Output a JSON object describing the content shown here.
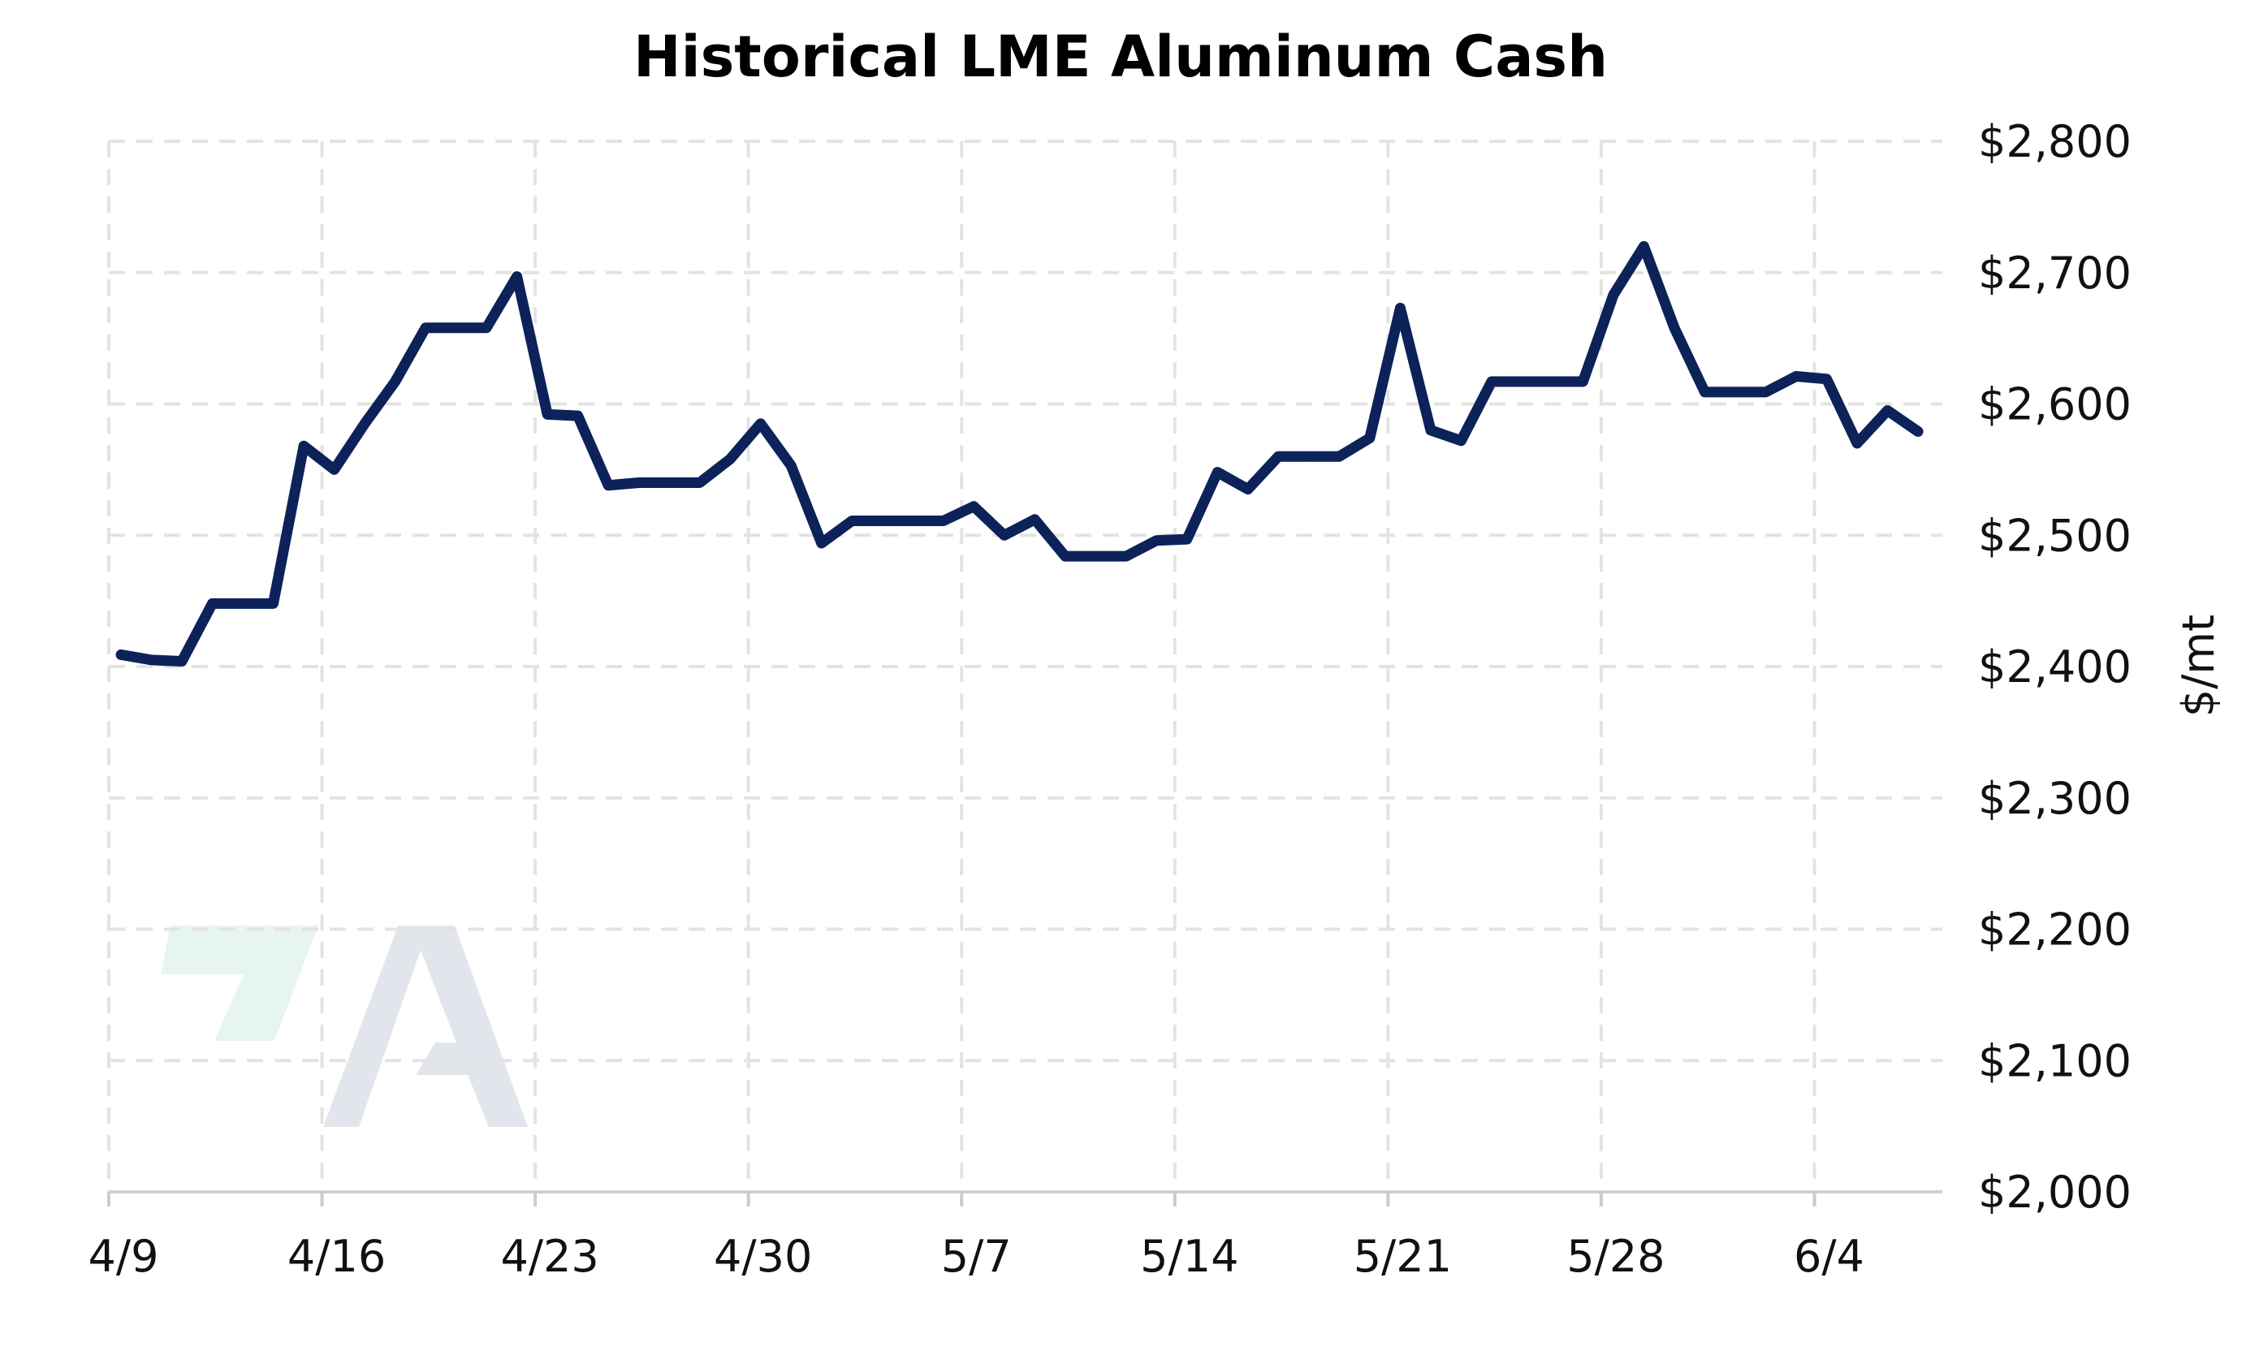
{
  "chart_data": {
    "type": "line",
    "title": "Historical LME Aluminum Cash",
    "xlabel": "",
    "ylabel": "$/mt",
    "x_axis_origin": "4/9",
    "x_tick_labels": [
      "4/9",
      "4/16",
      "4/23",
      "4/30",
      "5/7",
      "5/14",
      "5/21",
      "5/28",
      "6/4"
    ],
    "y_tick_labels": [
      "$2,000",
      "$2,100",
      "$2,200",
      "$2,300",
      "$2,400",
      "$2,500",
      "$2,600",
      "$2,700",
      "$2,800"
    ],
    "ylim": [
      2000,
      2800
    ],
    "x_range_days": [
      0,
      60.2
    ],
    "y_axis_position": "right",
    "grid": true,
    "grid_style": "dashed",
    "line_color": "#0c2259",
    "series": [
      {
        "x": [
          0.4,
          1.4,
          2.4,
          3.4,
          4.4,
          5.4,
          6.4,
          7.4,
          8.4,
          9.4,
          10.4,
          11.4,
          12.4,
          13.4,
          14.4,
          15.4,
          16.4,
          17.4,
          18.4,
          19.4,
          20.4,
          21.4,
          22.4,
          23.4,
          24.4,
          25.4,
          26.4,
          27.4,
          28.4,
          29.4,
          30.4,
          31.4,
          32.4,
          33.4,
          34.4,
          35.4,
          36.4,
          37.4,
          38.4,
          39.4,
          40.4,
          41.4,
          42.4,
          43.4,
          44.4,
          45.4,
          46.4,
          47.4,
          48.4,
          49.4,
          50.4,
          51.4,
          52.4,
          53.4,
          54.4,
          55.4,
          56.4,
          57.4,
          58.4,
          59.4
        ],
        "values": [
          2409,
          2405,
          2404,
          2448,
          2448,
          2448,
          2568,
          2550,
          2585,
          2617,
          2658,
          2658,
          2658,
          2697,
          2592,
          2591,
          2538,
          2540,
          2540,
          2540,
          2558,
          2585,
          2553,
          2494,
          2511,
          2511,
          2511,
          2511,
          2522,
          2500,
          2512,
          2484,
          2484,
          2484,
          2496,
          2497,
          2548,
          2535,
          2560,
          2560,
          2560,
          2574,
          2673,
          2580,
          2572,
          2617,
          2617,
          2617,
          2617,
          2683,
          2720,
          2658,
          2609,
          2609,
          2609,
          2621,
          2619,
          2570,
          2595,
          2579
        ]
      }
    ]
  },
  "logo": {
    "accent_color": "#e6f6ef",
    "letter_color": "#e2e6ec"
  }
}
